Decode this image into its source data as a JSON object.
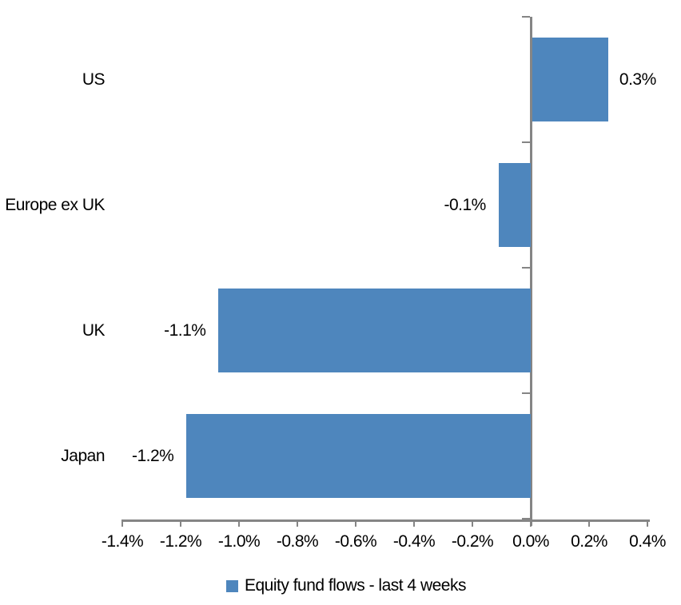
{
  "chart_data": {
    "type": "bar",
    "orientation": "horizontal",
    "title": "",
    "categories": [
      "US",
      "Europe ex UK",
      "UK",
      "Japan"
    ],
    "series": [
      {
        "name": "Equity fund flows - last 4 weeks",
        "values": [
          0.26,
          -0.11,
          -1.07,
          -1.18
        ],
        "labels": [
          "0.3%",
          "-0.1%",
          "-1.1%",
          "-1.2%"
        ]
      }
    ],
    "x_axis": {
      "min": -1.4,
      "max": 0.4,
      "ticks": [
        {
          "value": -1.4,
          "label": "-1.4%"
        },
        {
          "value": -1.2,
          "label": "-1.2%"
        },
        {
          "value": -1.0,
          "label": "-1.0%"
        },
        {
          "value": -0.8,
          "label": "-0.8%"
        },
        {
          "value": -0.6,
          "label": "-0.6%"
        },
        {
          "value": -0.4,
          "label": "-0.4%"
        },
        {
          "value": -0.2,
          "label": "-0.2%"
        },
        {
          "value": 0.0,
          "label": "0.0%"
        },
        {
          "value": 0.2,
          "label": "0.2%"
        },
        {
          "value": 0.4,
          "label": "0.4%"
        }
      ]
    },
    "grid": false,
    "legend": {
      "position": "bottom",
      "entries": [
        {
          "label": "Equity fund flows - last 4 weeks",
          "color": "#4e86bd"
        }
      ]
    },
    "colors": {
      "bar": "#4e86bd",
      "axis": "#858585",
      "text": "#000000",
      "background": "#ffffff"
    }
  }
}
